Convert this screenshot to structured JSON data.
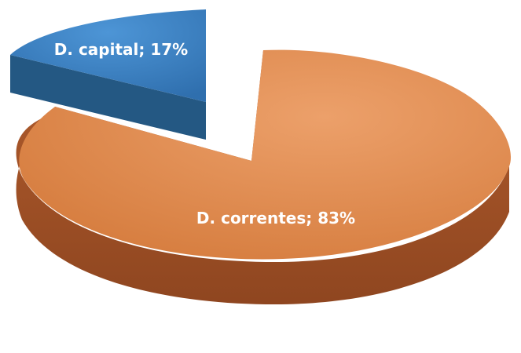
{
  "chart_data": {
    "type": "pie",
    "style": "3d-exploded",
    "title": "",
    "series": [
      {
        "categories": [
          "D. correntes",
          "D. capital"
        ],
        "values": [
          83,
          17
        ],
        "labels": [
          "D. correntes; 83%",
          "D. capital; 17%"
        ],
        "colors": [
          "#e08a4e",
          "#3b7fc0"
        ]
      }
    ],
    "legend": "none"
  }
}
